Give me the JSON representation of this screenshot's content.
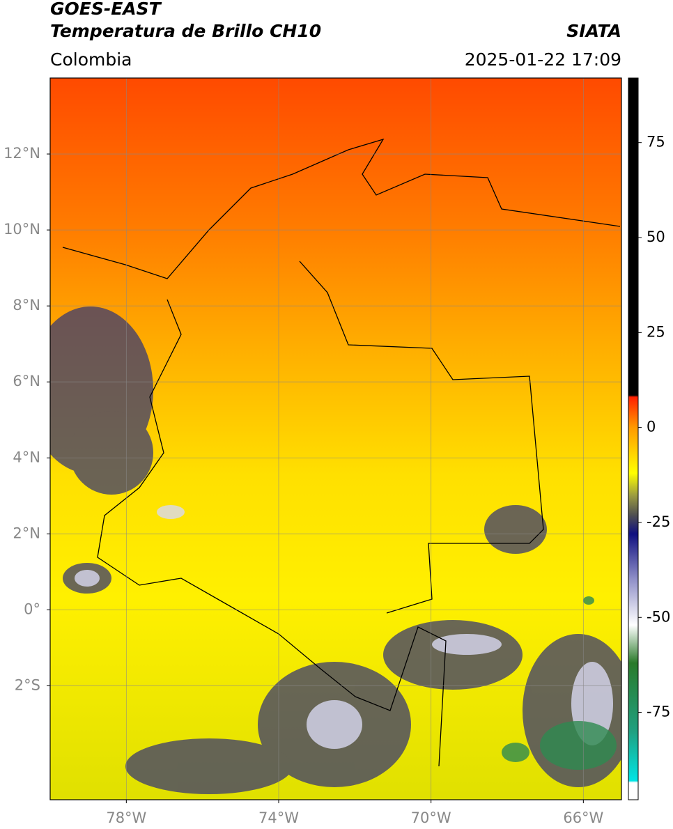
{
  "header": {
    "title": "GOES-EAST",
    "subtitle": "Temperatura de Brillo CH10",
    "region": "Colombia",
    "source": "SIATA",
    "timestamp": "2025-01-22 17:09"
  },
  "map": {
    "xlim": [
      -80,
      -65
    ],
    "ylim": [
      -5,
      14
    ],
    "xticks": [
      {
        "value": -78,
        "label": "78°W"
      },
      {
        "value": -74,
        "label": "74°W"
      },
      {
        "value": -70,
        "label": "70°W"
      },
      {
        "value": -66,
        "label": "66°W"
      }
    ],
    "yticks": [
      {
        "value": 12,
        "label": "12°N"
      },
      {
        "value": 10,
        "label": "10°N"
      },
      {
        "value": 8,
        "label": "8°N"
      },
      {
        "value": 6,
        "label": "6°N"
      },
      {
        "value": 4,
        "label": "4°N"
      },
      {
        "value": 2,
        "label": "2°N"
      },
      {
        "value": 0,
        "label": "0°"
      },
      {
        "value": -2,
        "label": "2°S"
      }
    ],
    "grid": true
  },
  "colorbar": {
    "lim": [
      -98,
      92
    ],
    "ticks": [
      75,
      50,
      25,
      0,
      -25,
      -50,
      -75
    ],
    "stops": [
      {
        "value": -98,
        "color": "#ffffff"
      },
      {
        "value": -93.5,
        "color": "#ffffff"
      },
      {
        "value": -93,
        "color": "#00e5e5"
      },
      {
        "value": -80,
        "color": "#20a080"
      },
      {
        "value": -62,
        "color": "#2a7a2a"
      },
      {
        "value": -52,
        "color": "#ffffff"
      },
      {
        "value": -40,
        "color": "#9090c8"
      },
      {
        "value": -28,
        "color": "#101080"
      },
      {
        "value": -23,
        "color": "#505050"
      },
      {
        "value": -18,
        "color": "#9a9a40"
      },
      {
        "value": -12,
        "color": "#ffff00"
      },
      {
        "value": 0,
        "color": "#ff9a00"
      },
      {
        "value": 8,
        "color": "#ff2000"
      },
      {
        "value": 8.5,
        "color": "#000000"
      },
      {
        "value": 92,
        "color": "#000000"
      }
    ]
  }
}
